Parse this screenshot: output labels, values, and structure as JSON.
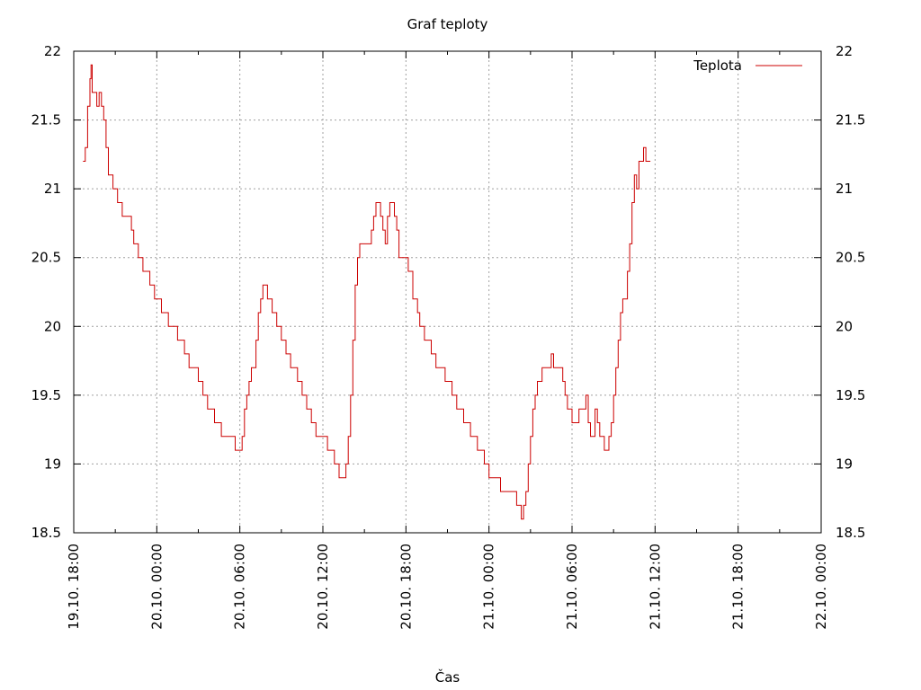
{
  "chart_data": {
    "type": "line",
    "title": "Graf teploty",
    "xlabel": "Čas",
    "ylabel": "",
    "ylim": [
      18.5,
      22
    ],
    "yticks": [
      "18.5",
      "19",
      "19.5",
      "20",
      "20.5",
      "21",
      "21.5",
      "22"
    ],
    "xticks": [
      "19.10. 18:00",
      "20.10. 00:00",
      "20.10. 06:00",
      "20.10. 12:00",
      "20.10. 18:00",
      "21.10. 00:00",
      "21.10. 06:00",
      "21.10. 12:00",
      "21.10. 18:00",
      "22.10. 00:00"
    ],
    "grid": true,
    "legend": "top-right",
    "series": [
      {
        "name": "Teplota",
        "color": "#cc0000",
        "points": [
          [
            "19.10. 18:40",
            21.2
          ],
          [
            "19.10. 18:50",
            21.3
          ],
          [
            "19.10. 19:00",
            21.6
          ],
          [
            "19.10. 19:10",
            21.8
          ],
          [
            "19.10. 19:15",
            21.9
          ],
          [
            "19.10. 19:20",
            21.7
          ],
          [
            "19.10. 19:40",
            21.6
          ],
          [
            "19.10. 19:50",
            21.7
          ],
          [
            "19.10. 20:00",
            21.6
          ],
          [
            "19.10. 20:10",
            21.5
          ],
          [
            "19.10. 20:20",
            21.3
          ],
          [
            "19.10. 20:30",
            21.1
          ],
          [
            "19.10. 20:50",
            21.0
          ],
          [
            "19.10. 21:10",
            20.9
          ],
          [
            "19.10. 21:30",
            20.8
          ],
          [
            "19.10. 22:10",
            20.7
          ],
          [
            "19.10. 22:20",
            20.6
          ],
          [
            "19.10. 22:40",
            20.5
          ],
          [
            "19.10. 23:00",
            20.4
          ],
          [
            "19.10. 23:30",
            20.3
          ],
          [
            "19.10. 23:50",
            20.2
          ],
          [
            "20.10. 00:20",
            20.1
          ],
          [
            "20.10. 00:50",
            20.0
          ],
          [
            "20.10. 01:30",
            19.9
          ],
          [
            "20.10. 02:00",
            19.8
          ],
          [
            "20.10. 02:20",
            19.7
          ],
          [
            "20.10. 03:00",
            19.6
          ],
          [
            "20.10. 03:20",
            19.5
          ],
          [
            "20.10. 03:40",
            19.4
          ],
          [
            "20.10. 04:10",
            19.3
          ],
          [
            "20.10. 04:40",
            19.2
          ],
          [
            "20.10. 05:40",
            19.1
          ],
          [
            "20.10. 06:10",
            19.2
          ],
          [
            "20.10. 06:20",
            19.4
          ],
          [
            "20.10. 06:30",
            19.5
          ],
          [
            "20.10. 06:40",
            19.6
          ],
          [
            "20.10. 06:50",
            19.7
          ],
          [
            "20.10. 07:10",
            19.9
          ],
          [
            "20.10. 07:20",
            20.1
          ],
          [
            "20.10. 07:30",
            20.2
          ],
          [
            "20.10. 07:40",
            20.3
          ],
          [
            "20.10. 08:00",
            20.2
          ],
          [
            "20.10. 08:20",
            20.1
          ],
          [
            "20.10. 08:40",
            20.0
          ],
          [
            "20.10. 09:00",
            19.9
          ],
          [
            "20.10. 09:20",
            19.8
          ],
          [
            "20.10. 09:40",
            19.7
          ],
          [
            "20.10. 10:10",
            19.6
          ],
          [
            "20.10. 10:30",
            19.5
          ],
          [
            "20.10. 10:50",
            19.4
          ],
          [
            "20.10. 11:10",
            19.3
          ],
          [
            "20.10. 11:30",
            19.2
          ],
          [
            "20.10. 12:20",
            19.1
          ],
          [
            "20.10. 12:50",
            19.0
          ],
          [
            "20.10. 13:10",
            18.9
          ],
          [
            "20.10. 13:40",
            19.0
          ],
          [
            "20.10. 13:50",
            19.2
          ],
          [
            "20.10. 14:00",
            19.5
          ],
          [
            "20.10. 14:10",
            19.9
          ],
          [
            "20.10. 14:20",
            20.3
          ],
          [
            "20.10. 14:30",
            20.5
          ],
          [
            "20.10. 14:40",
            20.6
          ],
          [
            "20.10. 15:30",
            20.7
          ],
          [
            "20.10. 15:40",
            20.8
          ],
          [
            "20.10. 15:50",
            20.9
          ],
          [
            "20.10. 16:10",
            20.8
          ],
          [
            "20.10. 16:20",
            20.7
          ],
          [
            "20.10. 16:30",
            20.6
          ],
          [
            "20.10. 16:40",
            20.8
          ],
          [
            "20.10. 16:50",
            20.9
          ],
          [
            "20.10. 17:10",
            20.8
          ],
          [
            "20.10. 17:20",
            20.7
          ],
          [
            "20.10. 17:30",
            20.5
          ],
          [
            "20.10. 18:10",
            20.4
          ],
          [
            "20.10. 18:30",
            20.2
          ],
          [
            "20.10. 18:50",
            20.1
          ],
          [
            "20.10. 19:00",
            20.0
          ],
          [
            "20.10. 19:20",
            19.9
          ],
          [
            "20.10. 19:50",
            19.8
          ],
          [
            "20.10. 20:10",
            19.7
          ],
          [
            "20.10. 20:50",
            19.6
          ],
          [
            "20.10. 21:20",
            19.5
          ],
          [
            "20.10. 21:40",
            19.4
          ],
          [
            "20.10. 22:10",
            19.3
          ],
          [
            "20.10. 22:40",
            19.2
          ],
          [
            "20.10. 23:10",
            19.1
          ],
          [
            "20.10. 23:40",
            19.0
          ],
          [
            "21.10. 00:00",
            18.9
          ],
          [
            "21.10. 00:50",
            18.8
          ],
          [
            "21.10. 02:00",
            18.7
          ],
          [
            "21.10. 02:20",
            18.6
          ],
          [
            "21.10. 02:30",
            18.7
          ],
          [
            "21.10. 02:40",
            18.8
          ],
          [
            "21.10. 02:50",
            19.0
          ],
          [
            "21.10. 03:00",
            19.2
          ],
          [
            "21.10. 03:10",
            19.4
          ],
          [
            "21.10. 03:20",
            19.5
          ],
          [
            "21.10. 03:30",
            19.6
          ],
          [
            "21.10. 03:50",
            19.7
          ],
          [
            "21.10. 04:30",
            19.8
          ],
          [
            "21.10. 04:40",
            19.7
          ],
          [
            "21.10. 05:20",
            19.6
          ],
          [
            "21.10. 05:30",
            19.5
          ],
          [
            "21.10. 05:40",
            19.4
          ],
          [
            "21.10. 06:00",
            19.3
          ],
          [
            "21.10. 06:30",
            19.4
          ],
          [
            "21.10. 07:00",
            19.5
          ],
          [
            "21.10. 07:10",
            19.3
          ],
          [
            "21.10. 07:20",
            19.2
          ],
          [
            "21.10. 07:40",
            19.4
          ],
          [
            "21.10. 07:50",
            19.3
          ],
          [
            "21.10. 08:00",
            19.2
          ],
          [
            "21.10. 08:20",
            19.1
          ],
          [
            "21.10. 08:40",
            19.2
          ],
          [
            "21.10. 08:50",
            19.3
          ],
          [
            "21.10. 09:00",
            19.5
          ],
          [
            "21.10. 09:10",
            19.7
          ],
          [
            "21.10. 09:20",
            19.9
          ],
          [
            "21.10. 09:30",
            20.1
          ],
          [
            "21.10. 09:40",
            20.2
          ],
          [
            "21.10. 10:00",
            20.4
          ],
          [
            "21.10. 10:10",
            20.6
          ],
          [
            "21.10. 10:20",
            20.9
          ],
          [
            "21.10. 10:30",
            21.1
          ],
          [
            "21.10. 10:40",
            21.0
          ],
          [
            "21.10. 10:50",
            21.2
          ],
          [
            "21.10. 11:10",
            21.3
          ],
          [
            "21.10. 11:20",
            21.2
          ]
        ]
      }
    ]
  }
}
